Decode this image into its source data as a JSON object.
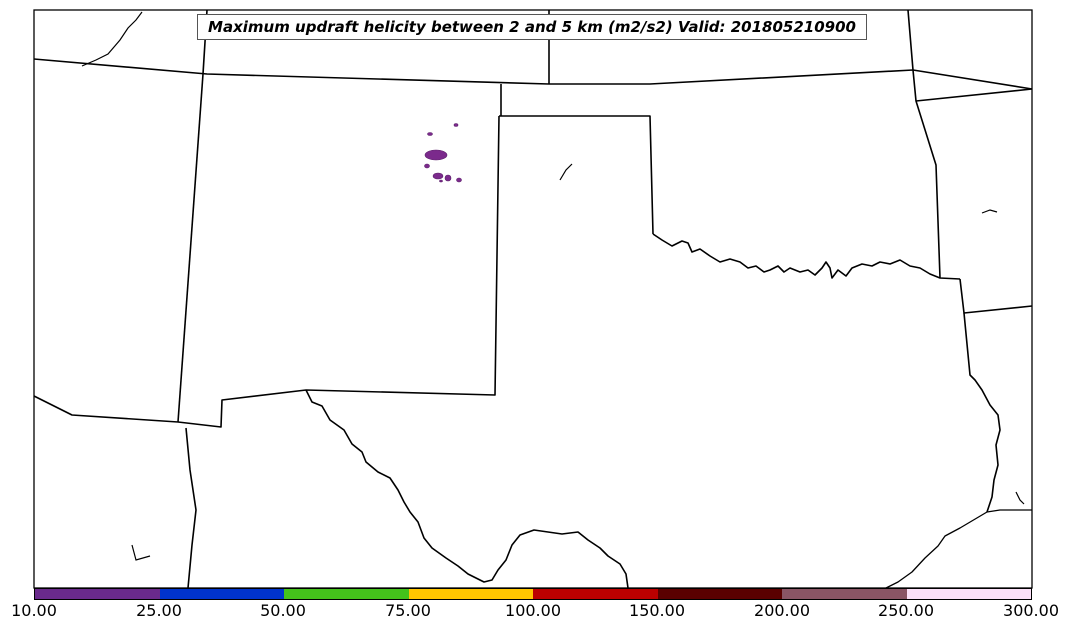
{
  "map": {
    "title": "Maximum updraft helicity between 2 and 5 km (m2/s2) Valid: 201805210900",
    "field_color": "#7B2A8C"
  },
  "colorbar": {
    "ticks": [
      "10.00",
      "25.00",
      "50.00",
      "75.00",
      "100.00",
      "150.00",
      "200.00",
      "250.00",
      "300.00"
    ],
    "colors": [
      "#6A2A8C",
      "#0033CC",
      "#44C21B",
      "#FFC600",
      "#BB0000",
      "#5A0000",
      "#8A5565",
      "#FBE0F8"
    ]
  }
}
